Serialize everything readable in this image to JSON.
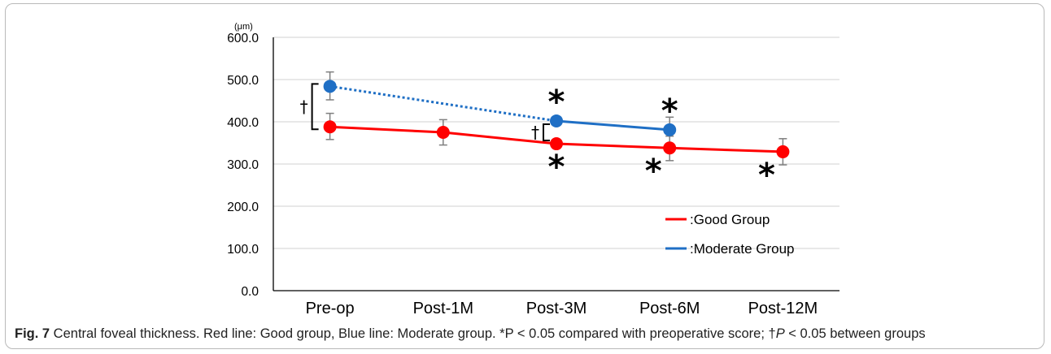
{
  "chart_data": {
    "type": "line",
    "unit_label": "(μm)",
    "categories": [
      "Pre-op",
      "Post-1M",
      "Post-3M",
      "Post-6M",
      "Post-12M"
    ],
    "ylim": [
      0,
      600
    ],
    "yticks": [
      "0.0",
      "100.0",
      "200.0",
      "300.0",
      "400.0",
      "500.0",
      "600.0"
    ],
    "grid": true,
    "legend_position": "lower-right",
    "series": [
      {
        "name": "Good Group",
        "legend_label": ":Good Group",
        "color": "#ff0000",
        "values": [
          388,
          375,
          348,
          338,
          329
        ],
        "err_plus": [
          32,
          30,
          0,
          28,
          31
        ],
        "err_minus": [
          30,
          30,
          0,
          30,
          31
        ],
        "sig_marks": [
          "",
          "",
          "*",
          "*",
          "*"
        ]
      },
      {
        "name": "Moderate Group",
        "legend_label": ":Moderate Group",
        "color": "#1f6fc5",
        "values": [
          484,
          null,
          402,
          381,
          null
        ],
        "err_plus": [
          34,
          0,
          0,
          30,
          0
        ],
        "err_minus": [
          32,
          0,
          0,
          0,
          0
        ],
        "sig_marks": [
          "",
          "",
          "*",
          "*",
          ""
        ],
        "dashed_segment": [
          0,
          2
        ]
      }
    ],
    "between_group_marks": [
      {
        "category": "Pre-op",
        "symbol": "†"
      },
      {
        "category": "Post-3M",
        "symbol": "†"
      }
    ]
  },
  "caption": {
    "fig_label": "Fig. 7",
    "text": " Central foveal thickness. Red line: Good group, Blue line: Moderate group. *P < 0.05 compared with preoperative score; †",
    "italic_p": "P",
    "text_end": " < 0.05 between groups"
  }
}
